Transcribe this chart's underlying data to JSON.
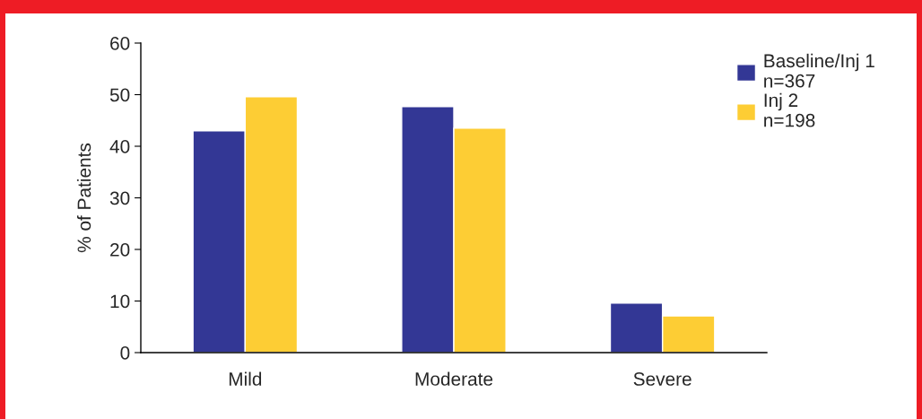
{
  "chart_data": {
    "type": "bar",
    "ylabel": "% of Patients",
    "categories": [
      "Mild",
      "Moderate",
      "Severe"
    ],
    "series": [
      {
        "name": "Baseline/Inj 1\nn=367",
        "color": "#333795",
        "values": [
          43,
          47.7,
          9.6
        ]
      },
      {
        "name": "Inj 2\nn=198",
        "color": "#fdcd34",
        "values": [
          49.6,
          43.5,
          7.1
        ]
      }
    ],
    "ylim": [
      0,
      60
    ],
    "yticks": [
      0,
      10,
      20,
      30,
      40,
      50,
      60
    ],
    "grid": false,
    "legend": "top right"
  }
}
